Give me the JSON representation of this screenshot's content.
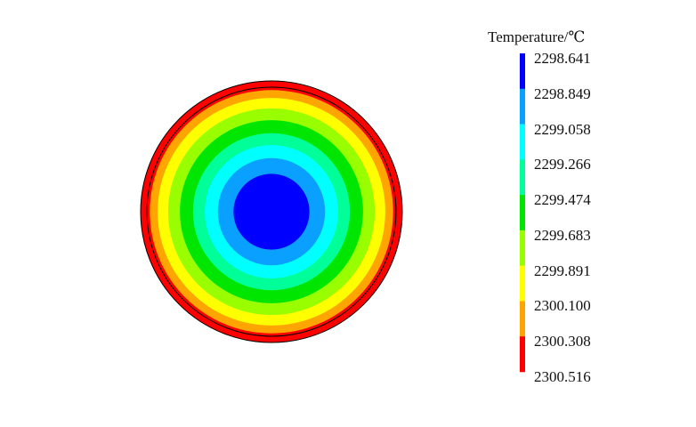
{
  "chart_data": {
    "type": "contour",
    "title": "",
    "description_units": "Temperature/℃",
    "legend": {
      "title": "Temperature/℃",
      "placement": "right",
      "ticks": [
        "2298.641",
        "2298.849",
        "2299.058",
        "2299.266",
        "2299.474",
        "2299.683",
        "2299.891",
        "2300.100",
        "2300.308",
        "2300.516"
      ],
      "bands": [
        {
          "from": 2298.641,
          "to": 2298.849,
          "color": "#0000ff"
        },
        {
          "from": 2298.849,
          "to": 2299.058,
          "color": "#0aa0ff"
        },
        {
          "from": 2299.058,
          "to": 2299.266,
          "color": "#00ffff"
        },
        {
          "from": 2299.266,
          "to": 2299.474,
          "color": "#00ff99"
        },
        {
          "from": 2299.474,
          "to": 2299.683,
          "color": "#00e600"
        },
        {
          "from": 2299.683,
          "to": 2299.891,
          "color": "#99ff00"
        },
        {
          "from": 2299.891,
          "to": 2300.1,
          "color": "#ffff00"
        },
        {
          "from": 2300.1,
          "to": 2300.308,
          "color": "#ffa500"
        },
        {
          "from": 2300.308,
          "to": 2300.516,
          "color": "#ff0000"
        }
      ]
    },
    "radial_profile": {
      "shape": "circle",
      "ring_order": "center-to-edge",
      "rings_fraction_of_radius": [
        0.29,
        0.41,
        0.51,
        0.6,
        0.7,
        0.79,
        0.87,
        0.93,
        1.0
      ],
      "ring_colors": [
        "#0000ff",
        "#0aa0ff",
        "#00ffff",
        "#00ff99",
        "#00e600",
        "#99ff00",
        "#ffff00",
        "#ffa500",
        "#ff0000"
      ],
      "boundary_line_fraction_of_radius": 0.952
    }
  }
}
